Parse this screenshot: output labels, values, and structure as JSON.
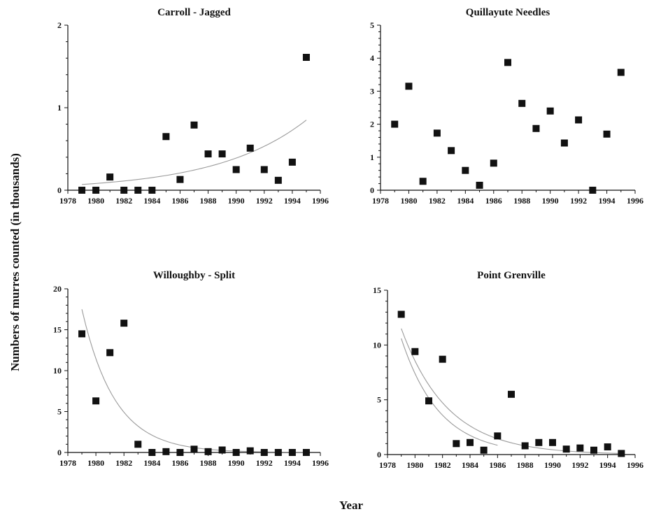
{
  "figure": {
    "ylabel": "Numbers of murres counted (in thousands)",
    "xlabel": "Year"
  },
  "chart_data": [
    {
      "type": "scatter",
      "title": "Carroll - Jagged",
      "xlim": [
        1978,
        1996
      ],
      "ylim": [
        0,
        2
      ],
      "x_ticks": [
        1978,
        1980,
        1982,
        1984,
        1986,
        1988,
        1990,
        1992,
        1994,
        1996
      ],
      "y_ticks": [
        0,
        1,
        2
      ],
      "series": [
        {
          "x": [
            1979,
            1980,
            1981,
            1982,
            1983,
            1984,
            1985,
            1986,
            1987,
            1988,
            1989,
            1990,
            1991,
            1992,
            1993,
            1994,
            1995
          ],
          "values": [
            0.0,
            0.0,
            0.16,
            0.0,
            0.0,
            0.0,
            0.65,
            0.13,
            0.79,
            0.44,
            0.44,
            0.25,
            0.51,
            0.25,
            0.12,
            0.34,
            1.61
          ]
        }
      ],
      "trendlines": [
        {
          "type": "exponential",
          "x": [
            1979,
            1995
          ],
          "y_start": 0.07,
          "y_end": 0.85
        }
      ],
      "color": "#111111",
      "trend_color": "#9a9a9a",
      "grid": false
    },
    {
      "type": "scatter",
      "title": "Quillayute Needles",
      "xlim": [
        1978,
        1996
      ],
      "ylim": [
        0,
        5
      ],
      "x_ticks": [
        1978,
        1980,
        1982,
        1984,
        1986,
        1988,
        1990,
        1992,
        1994,
        1996
      ],
      "y_ticks": [
        0,
        1,
        2,
        3,
        4,
        5
      ],
      "series": [
        {
          "x": [
            1979,
            1980,
            1981,
            1982,
            1983,
            1984,
            1985,
            1986,
            1987,
            1988,
            1989,
            1990,
            1991,
            1992,
            1993,
            1994,
            1995
          ],
          "values": [
            2.0,
            3.15,
            0.27,
            1.73,
            1.2,
            0.6,
            0.15,
            0.82,
            3.87,
            2.63,
            1.87,
            2.4,
            1.43,
            2.13,
            0.0,
            1.7,
            3.57
          ]
        }
      ],
      "trendlines": [],
      "color": "#111111",
      "trend_color": "#9a9a9a",
      "grid": false
    },
    {
      "type": "scatter",
      "title": "Willoughby - Split",
      "xlim": [
        1978,
        1996
      ],
      "ylim": [
        0,
        20
      ],
      "x_ticks": [
        1978,
        1980,
        1982,
        1984,
        1986,
        1988,
        1990,
        1992,
        1994,
        1996
      ],
      "y_ticks": [
        0,
        5,
        10,
        15,
        20
      ],
      "series": [
        {
          "x": [
            1979,
            1980,
            1981,
            1982,
            1983,
            1984,
            1985,
            1986,
            1987,
            1988,
            1989,
            1990,
            1991,
            1992,
            1993,
            1994,
            1995
          ],
          "values": [
            14.5,
            6.3,
            12.2,
            15.8,
            1.0,
            0.0,
            0.1,
            0.0,
            0.4,
            0.1,
            0.3,
            0.0,
            0.2,
            0.0,
            0.0,
            0.0,
            0.0
          ]
        }
      ],
      "trendlines": [
        {
          "type": "exponential",
          "x": [
            1979,
            1995
          ],
          "y_start": 17.5,
          "y_end": 0.02
        }
      ],
      "color": "#111111",
      "trend_color": "#9a9a9a",
      "grid": false
    },
    {
      "type": "scatter",
      "title": "Point Grenville",
      "xlim": [
        1978,
        1996
      ],
      "ylim": [
        0,
        15
      ],
      "x_ticks": [
        1978,
        1980,
        1982,
        1984,
        1986,
        1988,
        1990,
        1992,
        1994,
        1996
      ],
      "y_ticks": [
        0,
        5,
        10,
        15
      ],
      "series": [
        {
          "x": [
            1979,
            1980,
            1981,
            1982,
            1983,
            1984,
            1985,
            1986,
            1987,
            1988,
            1989,
            1990,
            1991,
            1992,
            1993,
            1994,
            1995
          ],
          "values": [
            12.8,
            9.4,
            4.9,
            8.7,
            1.0,
            1.1,
            0.4,
            1.7,
            5.5,
            0.8,
            1.1,
            1.1,
            0.5,
            0.6,
            0.4,
            0.7,
            0.1
          ]
        }
      ],
      "trendlines": [
        {
          "type": "exponential",
          "x": [
            1979,
            1995
          ],
          "y_start": 11.5,
          "y_end": 0.1
        },
        {
          "type": "exponential",
          "x": [
            1979,
            1986
          ],
          "y_start": 10.6,
          "y_end": 0.85
        }
      ],
      "color": "#111111",
      "trend_color": "#9a9a9a",
      "grid": false
    }
  ]
}
